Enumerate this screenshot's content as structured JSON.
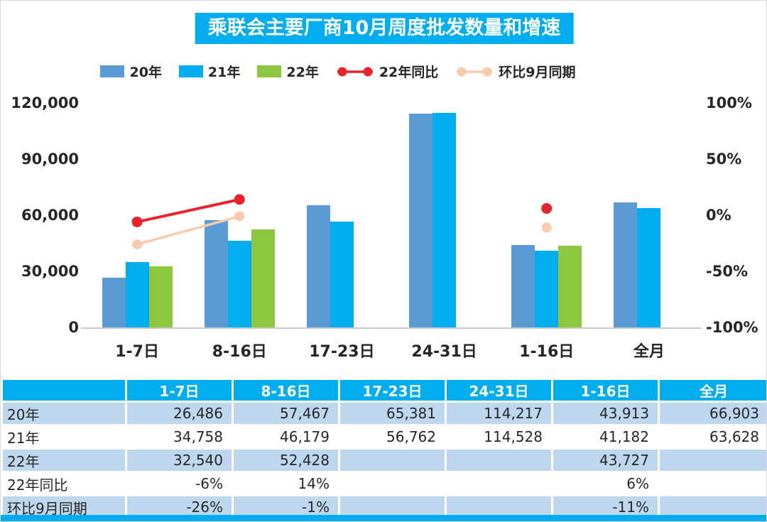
{
  "title": "乘联会主要厂商10月周度批发数量和增速",
  "colors": {
    "cyan": "#00AEEF",
    "bar_20": "#5B9BD5",
    "bar_21": "#00AEEF",
    "bar_22": "#8DC63F",
    "line_yoy": "#E8232B",
    "line_mom": "#F8CBAD",
    "table_light_row": "#BDD7EE",
    "axis_line": "#C9C9C9"
  },
  "legend": [
    {
      "label": "20年",
      "type": "bar",
      "color": "#5B9BD5"
    },
    {
      "label": "21年",
      "type": "bar",
      "color": "#00AEEF"
    },
    {
      "label": "22年",
      "type": "bar",
      "color": "#8DC63F"
    },
    {
      "label": "22年同比",
      "type": "line",
      "color": "#E8232B"
    },
    {
      "label": "环比9月同期",
      "type": "line",
      "color": "#F8CBAD"
    }
  ],
  "chart_data": {
    "type": "combo-bar-line",
    "title": "乘联会主要厂商10月周度批发数量和增速",
    "categories": [
      "1-7日",
      "8-16日",
      "17-23日",
      "24-31日",
      "1-16日",
      "全月"
    ],
    "bar_series": [
      {
        "name": "20年",
        "color": "#5B9BD5",
        "values": [
          26486,
          57467,
          65381,
          114217,
          43913,
          66903
        ]
      },
      {
        "name": "21年",
        "color": "#00AEEF",
        "values": [
          34758,
          46179,
          56762,
          114528,
          41182,
          63628
        ]
      },
      {
        "name": "22年",
        "color": "#8DC63F",
        "values": [
          32540,
          52428,
          null,
          null,
          43727,
          null
        ]
      }
    ],
    "line_series": [
      {
        "name": "22年同比",
        "color": "#E8232B",
        "width": 4,
        "marker_r": 7.5,
        "values_pct": [
          -6,
          14,
          null,
          null,
          6,
          null
        ]
      },
      {
        "name": "环比9月同期",
        "color": "#F8CBAD",
        "width": 3.5,
        "marker_r": 7,
        "values_pct": [
          -26,
          -1,
          null,
          null,
          -11,
          null
        ]
      }
    ],
    "left_axis": {
      "max": 120000,
      "min": 0,
      "ticks": [
        {
          "label": "0",
          "value": 0
        },
        {
          "label": "30,000",
          "value": 30000
        },
        {
          "label": "60,000",
          "value": 60000
        },
        {
          "label": "90,000",
          "value": 90000
        },
        {
          "label": "120,000",
          "value": 120000
        }
      ]
    },
    "right_axis": {
      "max": 100,
      "min": -100,
      "ticks": [
        {
          "label": "-100%",
          "value": -100
        },
        {
          "label": "-50%",
          "value": -50
        },
        {
          "label": "0%",
          "value": 0
        },
        {
          "label": "50%",
          "value": 50
        },
        {
          "label": "100%",
          "value": 100
        }
      ]
    },
    "grid": false,
    "legend_position": "top"
  },
  "table": {
    "header_row": [
      "",
      "1-7日",
      "8-16日",
      "17-23日",
      "24-31日",
      "1-16日",
      "全月"
    ],
    "rows": [
      {
        "label": "20年",
        "values": [
          "26,486",
          "57,467",
          "65,381",
          "114,217",
          "43,913",
          "66,903"
        ]
      },
      {
        "label": "21年",
        "values": [
          "34,758",
          "46,179",
          "56,762",
          "114,528",
          "41,182",
          "63,628"
        ]
      },
      {
        "label": "22年",
        "values": [
          "32,540",
          "52,428",
          "",
          "",
          "43,727",
          ""
        ]
      },
      {
        "label": "22年同比",
        "values": [
          "-6%",
          "14%",
          "",
          "",
          "6%",
          ""
        ]
      },
      {
        "label": "环比9月同期",
        "values": [
          "-26%",
          "-1%",
          "",
          "",
          "-11%",
          ""
        ]
      }
    ]
  }
}
